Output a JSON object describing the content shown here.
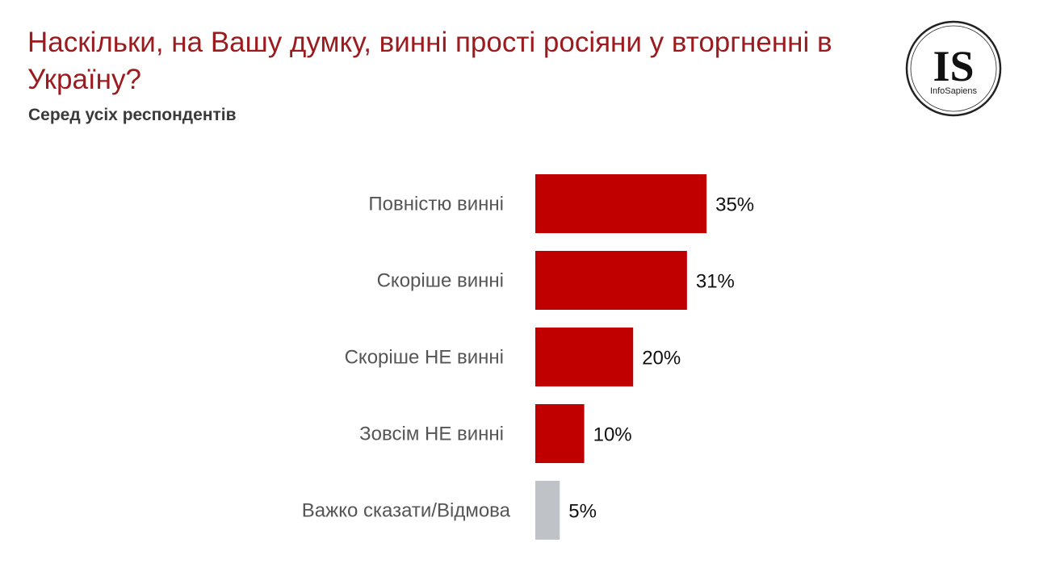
{
  "header": {
    "title": "Наскільки, на Вашу думку, винні прості росіяни у вторгненні в Україну?",
    "subtitle": "Серед усіх респондентів"
  },
  "logo": {
    "initials": "IS",
    "name": "InfoSapiens"
  },
  "colors": {
    "title": "#9b1b1f",
    "bar_main": "#c00000",
    "bar_other": "#bfc3c7"
  },
  "chart_data": {
    "type": "bar",
    "orientation": "horizontal",
    "categories": [
      "Повністю винні",
      "Скоріше винні",
      "Скоріше НЕ винні",
      "Зовсім НЕ винні",
      "Важко сказати/Відмова"
    ],
    "values": [
      35,
      31,
      20,
      10,
      5
    ],
    "value_labels": [
      "35%",
      "31%",
      "20%",
      "10%",
      "5%"
    ],
    "bar_colors": [
      "#c00000",
      "#c00000",
      "#c00000",
      "#c00000",
      "#bfc3c7"
    ],
    "title": "",
    "xlabel": "",
    "ylabel": "",
    "xlim": [
      0,
      100
    ],
    "grid": false,
    "legend": "none"
  }
}
